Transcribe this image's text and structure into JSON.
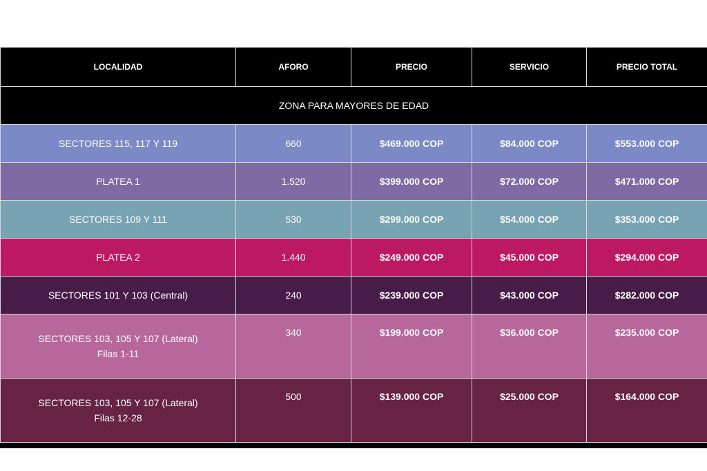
{
  "headers": [
    "LOCALIDAD",
    "AFORO",
    "PRECIO",
    "SERVICIO",
    "PRECIO TOTAL"
  ],
  "zone_title": "ZONA PARA MAYORES DE EDAD",
  "colors": {
    "row_0": "#7b8ac7",
    "row_1": "#7f6aa3",
    "row_2": "#78a3b3",
    "row_3": "#bd1963",
    "row_4": "#481c48",
    "row_5": "#b7679c",
    "row_6": "#672344"
  },
  "rows": [
    {
      "localidad": "SECTORES 115, 117 Y 119",
      "localidad_line2": "",
      "aforo": "660",
      "precio": "$469.000 COP",
      "servicio": "$84.000 COP",
      "total": "$553.000 COP"
    },
    {
      "localidad": "PLATEA 1",
      "localidad_line2": "",
      "aforo": "1.520",
      "precio": "$399.000 COP",
      "servicio": "$72.000 COP",
      "total": "$471.000 COP"
    },
    {
      "localidad": "SECTORES 109 Y 111",
      "localidad_line2": "",
      "aforo": "530",
      "precio": "$299.000 COP",
      "servicio": "$54.000 COP",
      "total": "$353.000 COP"
    },
    {
      "localidad": "PLATEA 2",
      "localidad_line2": "",
      "aforo": "1.440",
      "precio": "$249.000 COP",
      "servicio": "$45.000 COP",
      "total": "$294.000 COP"
    },
    {
      "localidad": "SECTORES 101 Y 103 (Central)",
      "localidad_line2": "",
      "aforo": "240",
      "precio": "$239.000 COP",
      "servicio": "$43.000 COP",
      "total": "$282.000 COP"
    },
    {
      "localidad": "SECTORES 103, 105 Y 107 (Lateral)",
      "localidad_line2": "Filas 1-11",
      "aforo": "340",
      "precio": "$199.000 COP",
      "servicio": "$36.000 COP",
      "total": "$235.000 COP"
    },
    {
      "localidad": "SECTORES 103, 105 Y 107 (Lateral)",
      "localidad_line2": "Filas 12-28",
      "aforo": "500",
      "precio": "$139.000 COP",
      "servicio": "$25.000 COP",
      "total": "$164.000 COP"
    }
  ]
}
